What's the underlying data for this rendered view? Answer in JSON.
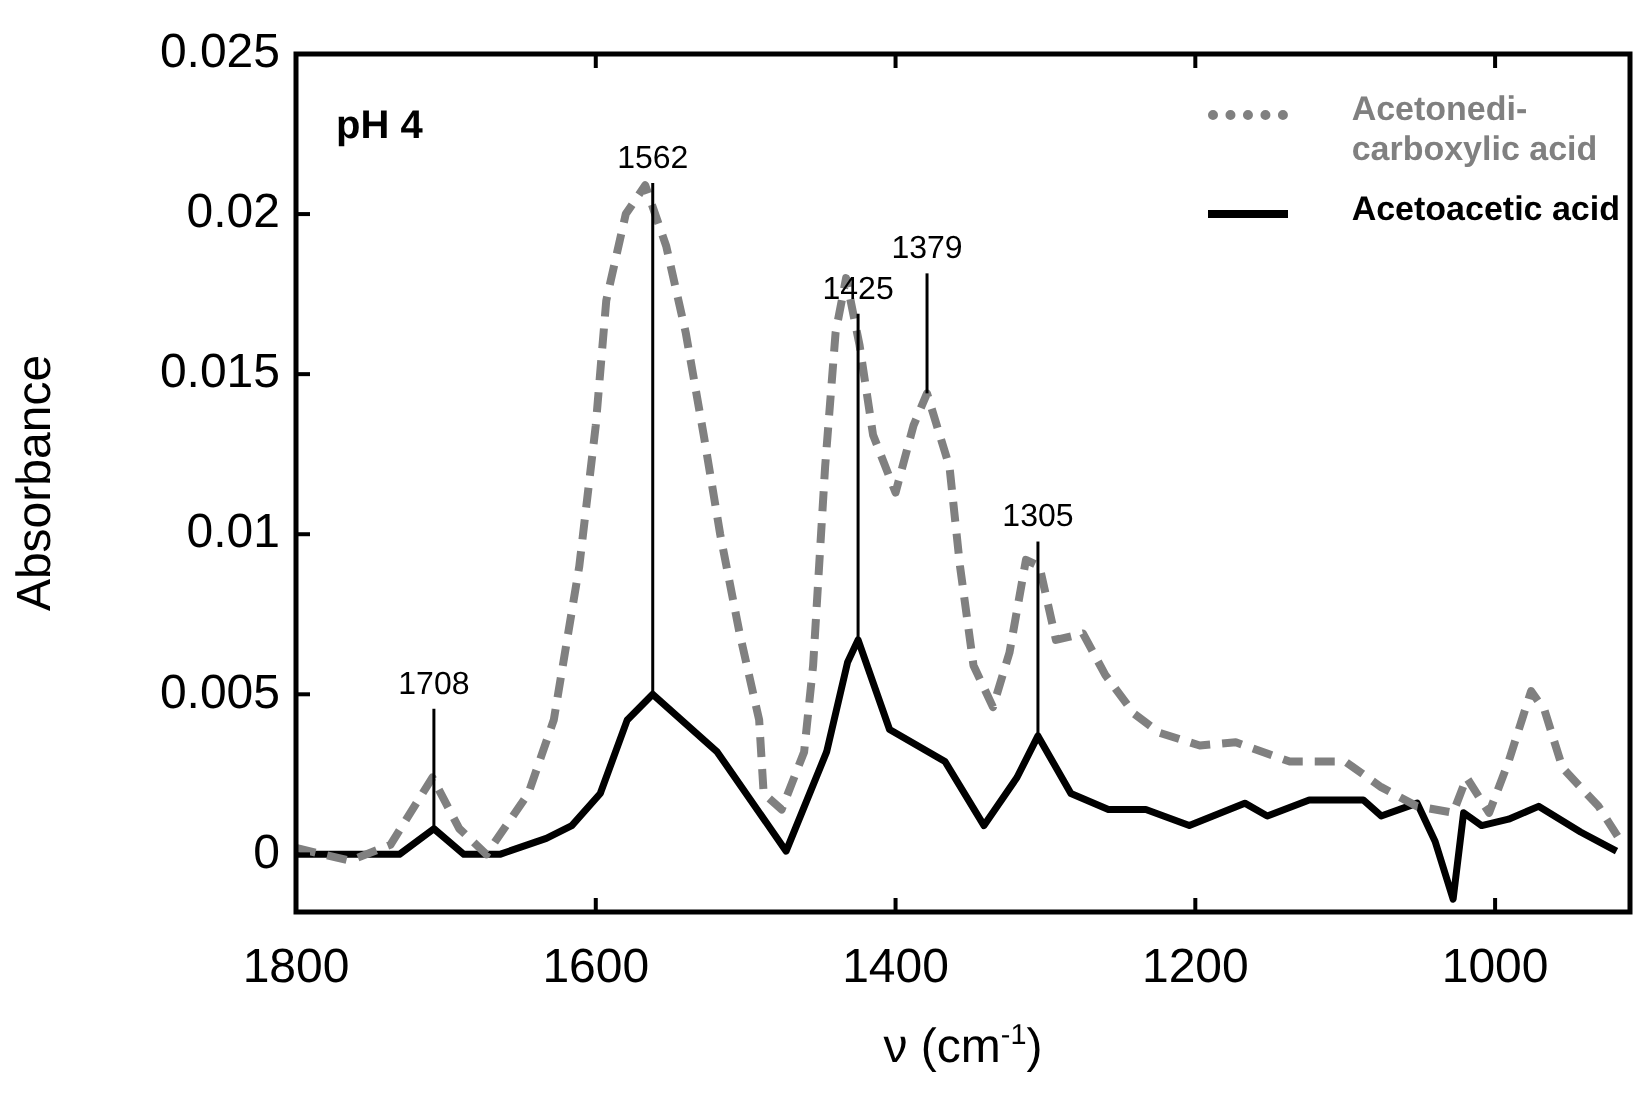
{
  "chart_data": {
    "type": "line",
    "xlabel": "ν (cm$^{-1}$)",
    "ylabel": "Absorbance",
    "xlim": [
      1800,
      910
    ],
    "xticks": [
      1800,
      1600,
      1400,
      1200,
      1000
    ],
    "ylim": [
      -0.0018,
      0.025
    ],
    "yticks": [
      0,
      0.005,
      0.01,
      0.015,
      0.02,
      0.025
    ],
    "grid": false,
    "legend": "top right",
    "marker": "none",
    "series": [
      {
        "name": "Acetonedi-carboxylic acid",
        "color": "#808080",
        "line_style": "dashed",
        "x": [
          1800,
          1764,
          1737,
          1709,
          1691,
          1673,
          1645,
          1628,
          1611,
          1600,
          1593,
          1580,
          1567,
          1553,
          1540,
          1528,
          1517,
          1504,
          1491,
          1488,
          1476,
          1461,
          1455,
          1447,
          1440,
          1433,
          1424,
          1415,
          1400,
          1388,
          1379,
          1364,
          1357,
          1348,
          1335,
          1324,
          1313,
          1304,
          1293,
          1275,
          1260,
          1241,
          1224,
          1197,
          1173,
          1137,
          1100,
          1076,
          1052,
          1028,
          1019,
          1004,
          991,
          976,
          967,
          955,
          931,
          916
        ],
        "values": [
          0.0002,
          -0.0002,
          0.0003,
          0.0024,
          0.0008,
          0,
          0.0019,
          0.0042,
          0.009,
          0.0134,
          0.0173,
          0.02,
          0.0209,
          0.019,
          0.0163,
          0.0131,
          0.01,
          0.0069,
          0.0042,
          0.0019,
          0.0014,
          0.0032,
          0.0059,
          0.0121,
          0.0163,
          0.018,
          0.0159,
          0.0131,
          0.0113,
          0.0134,
          0.0144,
          0.0121,
          0.009,
          0.0059,
          0.0046,
          0.0063,
          0.0092,
          0.009,
          0.0067,
          0.0069,
          0.0056,
          0.0044,
          0.0038,
          0.0034,
          0.0035,
          0.0029,
          0.0029,
          0.0021,
          0.0015,
          0.0013,
          0.0024,
          0.0013,
          0.0029,
          0.0051,
          0.0045,
          0.0027,
          0.0015,
          0.0004
        ]
      },
      {
        "name": "Acetoacetic acid",
        "color": "#000000",
        "line_style": "solid",
        "x": [
          1800,
          1731,
          1708,
          1688,
          1664,
          1633,
          1616,
          1597,
          1579,
          1562,
          1519,
          1473,
          1446,
          1432,
          1425,
          1404,
          1367,
          1341,
          1319,
          1305,
          1283,
          1258,
          1233,
          1204,
          1167,
          1152,
          1124,
          1088,
          1076,
          1052,
          1040,
          1028,
          1021,
          1009,
          991,
          971,
          943,
          919
        ],
        "values": [
          0,
          0,
          0.0008,
          0,
          0,
          0.0005,
          0.0009,
          0.0019,
          0.0042,
          0.005,
          0.0032,
          0.0001,
          0.0032,
          0.006,
          0.0067,
          0.0039,
          0.0029,
          0.0009,
          0.0024,
          0.0037,
          0.0019,
          0.0014,
          0.0014,
          0.0009,
          0.0016,
          0.0012,
          0.0017,
          0.0017,
          0.0012,
          0.0016,
          0.0004,
          -0.0014,
          0.0013,
          0.0009,
          0.0011,
          0.0015,
          0.0007,
          0.0001
        ]
      }
    ],
    "annotations": [
      "pH 4",
      {
        "text": "1708",
        "x": 1708,
        "y": 0.0008
      },
      {
        "text": "1562",
        "x": 1562,
        "y": 0.005
      },
      {
        "text": "1425",
        "x": 1425,
        "y": 0.0067
      },
      {
        "text": "1379",
        "x": 1379,
        "y": 0.0144
      },
      {
        "text": "1305",
        "x": 1305,
        "y": 0.0037
      }
    ]
  }
}
